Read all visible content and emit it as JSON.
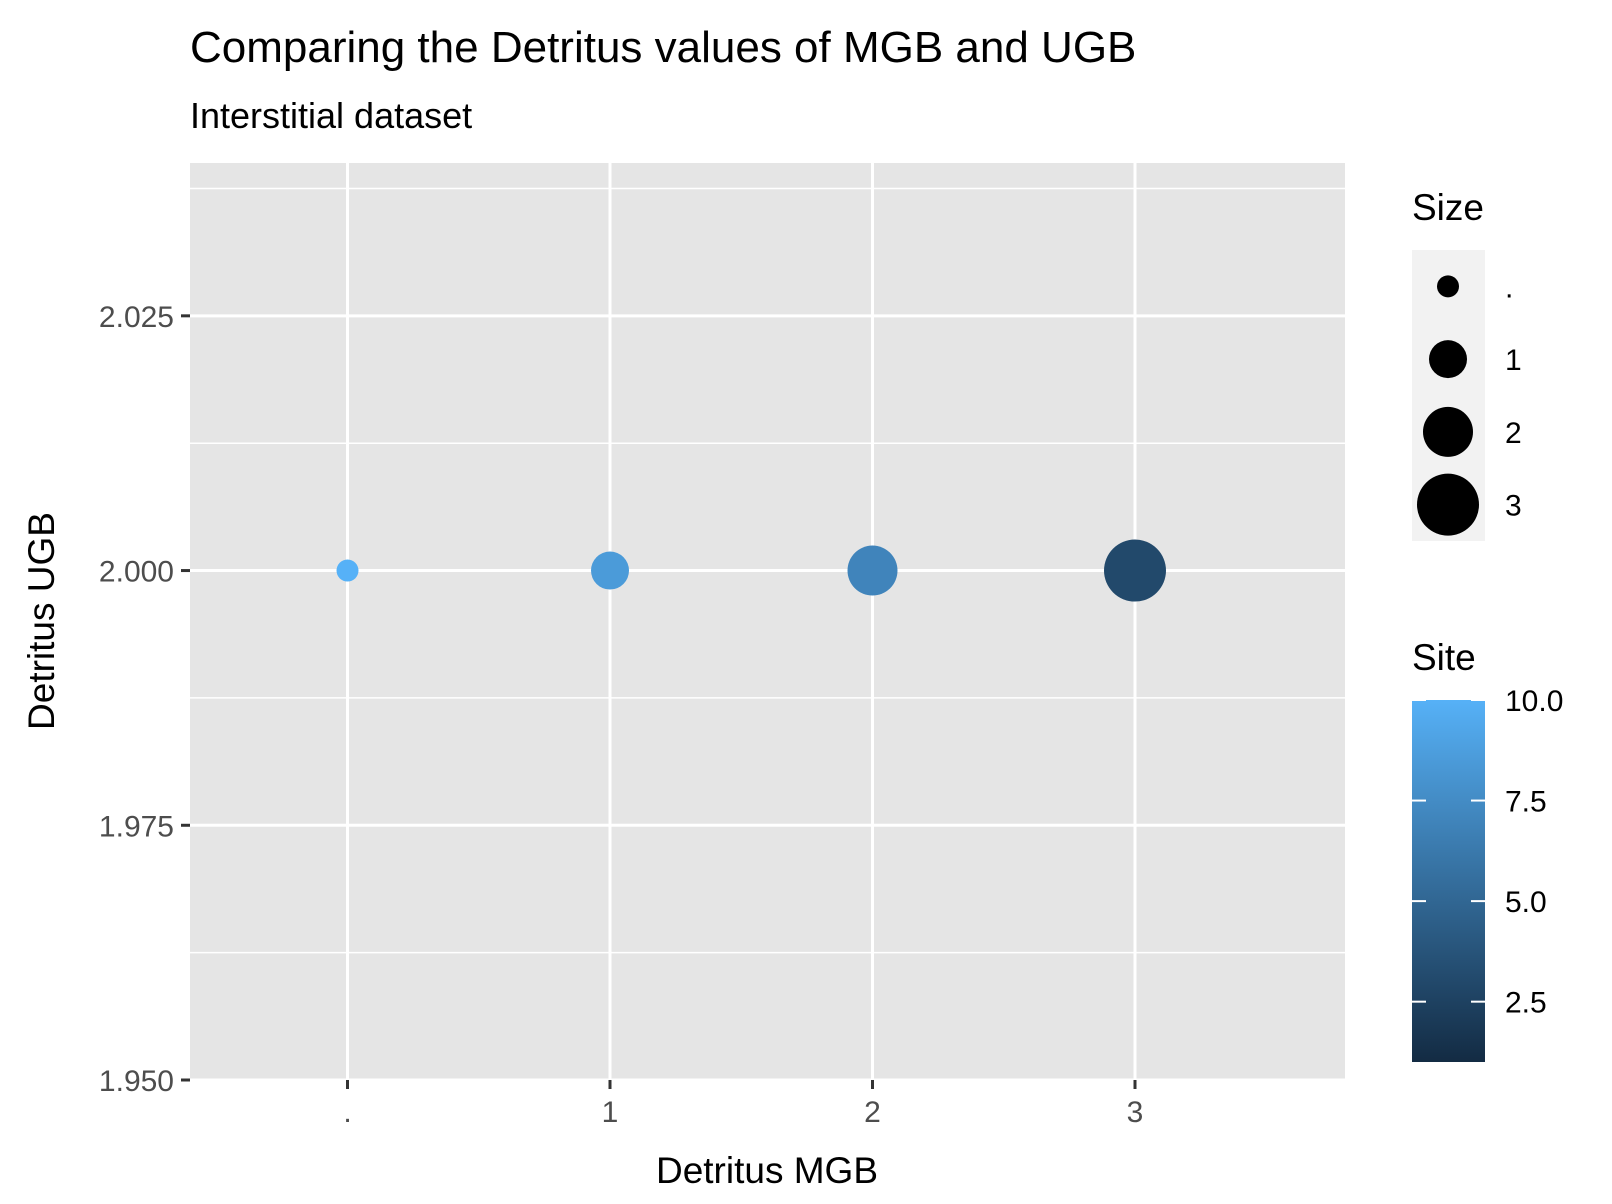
{
  "chart_data": {
    "type": "scatter",
    "title": "Comparing the Detritus values of MGB and UGB",
    "subtitle": "Interstitial dataset",
    "xlabel": "Detritus MGB",
    "ylabel": "Detritus UGB",
    "x_categories": [
      ".",
      "1",
      "2",
      "3"
    ],
    "ylim": [
      1.95,
      2.04
    ],
    "y_ticks": [
      1.95,
      1.975,
      2.0,
      2.025
    ],
    "y_tick_labels": [
      "1.950",
      "1.975",
      "2.000",
      "2.025"
    ],
    "grid": true,
    "points": [
      {
        "x": ".",
        "y": 2.0,
        "size": ".",
        "site": 10.0
      },
      {
        "x": "1",
        "y": 2.0,
        "size": "1",
        "site": 8.5
      },
      {
        "x": "2",
        "y": 2.0,
        "size": "2",
        "site": 7.0
      },
      {
        "x": "3",
        "y": 2.0,
        "size": "3",
        "site": 3.0
      }
    ],
    "size_legend": {
      "title": "Size",
      "labels": [
        ".",
        "1",
        "2",
        "3"
      ]
    },
    "color_legend": {
      "title": "Site",
      "min": 1,
      "max": 10,
      "ticks": [
        2.5,
        5.0,
        7.5,
        10.0
      ],
      "tick_labels": [
        "2.5",
        "5.0",
        "7.5",
        "10.0"
      ],
      "color_low": "#132b43",
      "color_high": "#56b1f7"
    },
    "panel_background": "#e5e5e5",
    "grid_color": "#ffffff"
  }
}
